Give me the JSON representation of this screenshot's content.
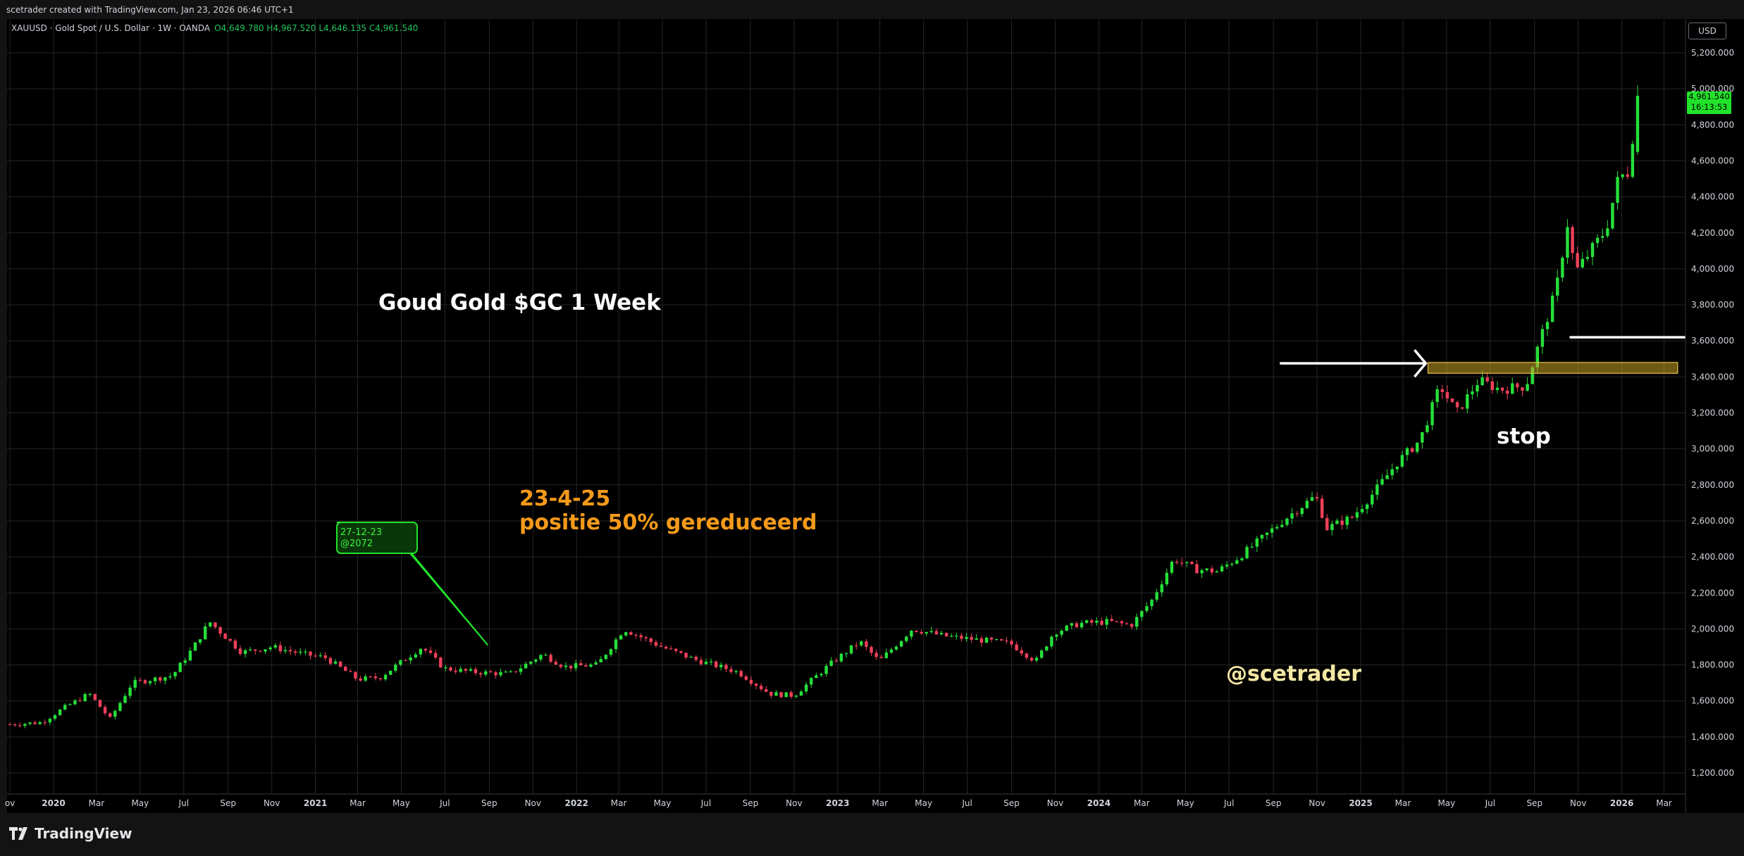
{
  "header": {
    "credit": "scetrader created with TradingView.com, Jan 23, 2026 06:46 UTC+1",
    "symbol": "XAUUSD · Gold Spot / U.S. Dollar · 1W · OANDA",
    "ohlc": "O4,649.780  H4,967.520  L4,646.135  C4,961.540",
    "currency": "USD"
  },
  "price_tag": {
    "price": "4,961.540",
    "countdown": "16:13:53"
  },
  "annotations": {
    "title": "Goud Gold $GC 1 Week",
    "date_line1": "23-4-25",
    "date_line2": "positie 50% gereduceerd",
    "stop": "stop",
    "handle": "@scetrader",
    "callout_line1": "27-12-23",
    "callout_line2": "@2072"
  },
  "footer": {
    "brand": "TradingView"
  },
  "colors": {
    "up": "#26e03a",
    "down": "#f0405a",
    "grid": "#2a2a2a",
    "zone": "#c9a227",
    "callout": "#22e32a",
    "date_note": "#f59a1a",
    "handle": "#f3e7a3"
  },
  "chart_data": {
    "type": "candlestick",
    "ylim": [
      1100,
      5300
    ],
    "xlim": [
      "2019-10-28",
      "2026-03-31"
    ],
    "y_ticks": [
      "1,200.000",
      "1,400.000",
      "1,600.000",
      "1,800.000",
      "2,000.000",
      "2,200.000",
      "2,400.000",
      "2,600.000",
      "2,800.000",
      "3,000.000",
      "3,200.000",
      "3,400.000",
      "3,600.000",
      "3,800.000",
      "4,000.000",
      "4,200.000",
      "4,400.000",
      "4,600.000",
      "4,800.000",
      "5,000.000",
      "5,200.000"
    ],
    "x_ticks": [
      {
        "label": "ov",
        "date": "2019-11-01"
      },
      {
        "label": "2020",
        "date": "2020-01-01"
      },
      {
        "label": "Mar",
        "date": "2020-03-01"
      },
      {
        "label": "May",
        "date": "2020-05-01"
      },
      {
        "label": "Jul",
        "date": "2020-07-01"
      },
      {
        "label": "Sep",
        "date": "2020-09-01"
      },
      {
        "label": "Nov",
        "date": "2020-11-01"
      },
      {
        "label": "2021",
        "date": "2021-01-01"
      },
      {
        "label": "Mar",
        "date": "2021-03-01"
      },
      {
        "label": "May",
        "date": "2021-05-01"
      },
      {
        "label": "Jul",
        "date": "2021-07-01"
      },
      {
        "label": "Sep",
        "date": "2021-09-01"
      },
      {
        "label": "Nov",
        "date": "2021-11-01"
      },
      {
        "label": "2022",
        "date": "2022-01-01"
      },
      {
        "label": "Mar",
        "date": "2022-03-01"
      },
      {
        "label": "May",
        "date": "2022-05-01"
      },
      {
        "label": "Jul",
        "date": "2022-07-01"
      },
      {
        "label": "Sep",
        "date": "2022-09-01"
      },
      {
        "label": "Nov",
        "date": "2022-11-01"
      },
      {
        "label": "2023",
        "date": "2023-01-01"
      },
      {
        "label": "Mar",
        "date": "2023-03-01"
      },
      {
        "label": "May",
        "date": "2023-05-01"
      },
      {
        "label": "Jul",
        "date": "2023-07-01"
      },
      {
        "label": "Sep",
        "date": "2023-09-01"
      },
      {
        "label": "Nov",
        "date": "2023-11-01"
      },
      {
        "label": "2024",
        "date": "2024-01-01"
      },
      {
        "label": "Mar",
        "date": "2024-03-01"
      },
      {
        "label": "May",
        "date": "2024-05-01"
      },
      {
        "label": "Jul",
        "date": "2024-07-01"
      },
      {
        "label": "Sep",
        "date": "2024-09-01"
      },
      {
        "label": "Nov",
        "date": "2024-11-01"
      },
      {
        "label": "2025",
        "date": "2025-01-01"
      },
      {
        "label": "Mar",
        "date": "2025-03-01"
      },
      {
        "label": "May",
        "date": "2025-05-01"
      },
      {
        "label": "Jul",
        "date": "2025-07-01"
      },
      {
        "label": "Sep",
        "date": "2025-09-01"
      },
      {
        "label": "Nov",
        "date": "2025-11-01"
      },
      {
        "label": "2026",
        "date": "2026-01-01"
      },
      {
        "label": "Mar",
        "date": "2026-03-01"
      }
    ],
    "close_path": [
      [
        "2019-11-01",
        1470
      ],
      [
        "2019-12-15",
        1480
      ],
      [
        "2020-01-15",
        1560
      ],
      [
        "2020-02-20",
        1640
      ],
      [
        "2020-03-20",
        1500
      ],
      [
        "2020-04-20",
        1700
      ],
      [
        "2020-06-15",
        1740
      ],
      [
        "2020-07-15",
        1900
      ],
      [
        "2020-08-06",
        2040
      ],
      [
        "2020-09-20",
        1870
      ],
      [
        "2020-11-01",
        1900
      ],
      [
        "2020-12-15",
        1860
      ],
      [
        "2021-01-15",
        1840
      ],
      [
        "2021-03-01",
        1720
      ],
      [
        "2021-04-01",
        1730
      ],
      [
        "2021-05-30",
        1900
      ],
      [
        "2021-06-30",
        1780
      ],
      [
        "2021-08-10",
        1760
      ],
      [
        "2021-09-30",
        1750
      ],
      [
        "2021-11-15",
        1860
      ],
      [
        "2021-12-15",
        1790
      ],
      [
        "2022-01-30",
        1800
      ],
      [
        "2022-03-08",
        2000
      ],
      [
        "2022-04-30",
        1900
      ],
      [
        "2022-06-15",
        1830
      ],
      [
        "2022-08-15",
        1760
      ],
      [
        "2022-09-28",
        1640
      ],
      [
        "2022-11-01",
        1630
      ],
      [
        "2022-12-20",
        1800
      ],
      [
        "2023-02-01",
        1930
      ],
      [
        "2023-02-28",
        1820
      ],
      [
        "2023-04-15",
        2000
      ],
      [
        "2023-05-30",
        1960
      ],
      [
        "2023-07-15",
        1940
      ],
      [
        "2023-08-30",
        1920
      ],
      [
        "2023-10-05",
        1820
      ],
      [
        "2023-10-30",
        1980
      ],
      [
        "2023-12-05",
        2030
      ],
      [
        "2024-01-15",
        2040
      ],
      [
        "2024-02-15",
        2020
      ],
      [
        "2024-03-15",
        2160
      ],
      [
        "2024-04-15",
        2390
      ],
      [
        "2024-05-15",
        2330
      ],
      [
        "2024-06-15",
        2320
      ],
      [
        "2024-07-15",
        2400
      ],
      [
        "2024-08-15",
        2500
      ],
      [
        "2024-09-20",
        2620
      ],
      [
        "2024-10-30",
        2740
      ],
      [
        "2024-11-15",
        2560
      ],
      [
        "2024-12-20",
        2620
      ],
      [
        "2025-01-20",
        2760
      ],
      [
        "2025-02-20",
        2920
      ],
      [
        "2025-03-25",
        3050
      ],
      [
        "2025-04-22",
        3350
      ],
      [
        "2025-05-15",
        3200
      ],
      [
        "2025-06-15",
        3380
      ],
      [
        "2025-07-15",
        3330
      ],
      [
        "2025-08-20",
        3350
      ],
      [
        "2025-09-10",
        3620
      ],
      [
        "2025-10-01",
        3880
      ],
      [
        "2025-10-17",
        4250
      ],
      [
        "2025-10-28",
        3980
      ],
      [
        "2025-11-15",
        4080
      ],
      [
        "2025-12-10",
        4220
      ],
      [
        "2025-12-27",
        4500
      ],
      [
        "2026-01-10",
        4540
      ],
      [
        "2026-01-23",
        4961.54
      ]
    ]
  }
}
